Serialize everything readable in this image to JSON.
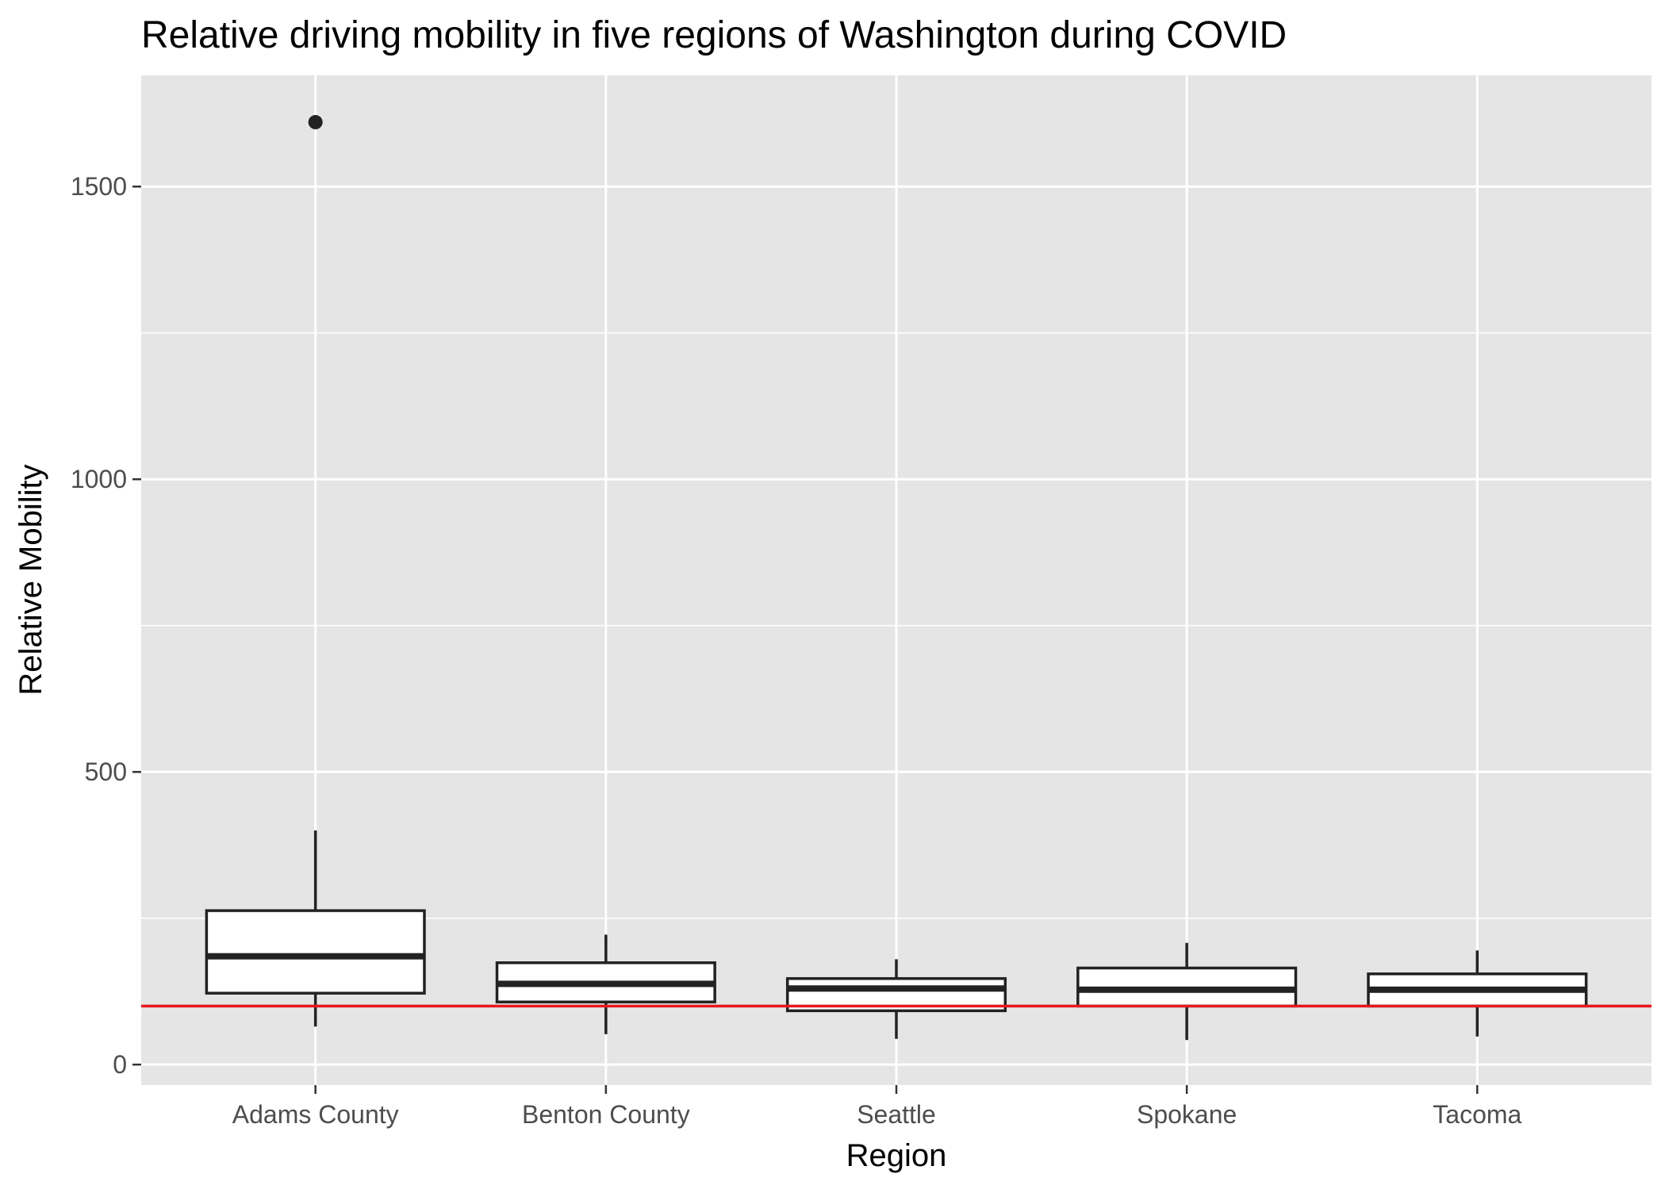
{
  "chart_data": {
    "type": "boxplot",
    "title": "Relative driving mobility in five regions of Washington during COVID",
    "xlabel": "Region",
    "ylabel": "Relative Mobility",
    "categories": [
      "Adams County",
      "Benton County",
      "Seattle",
      "Spokane",
      "Tacoma"
    ],
    "yticks": [
      0,
      500,
      1000,
      1500
    ],
    "ylim": [
      -35,
      1690
    ],
    "grid": true,
    "legend": "none",
    "boxes": [
      {
        "category": "Adams County",
        "whisker_low": 65,
        "q1": 122,
        "median": 185,
        "q3": 263,
        "whisker_high": 400,
        "outliers": [
          1610
        ]
      },
      {
        "category": "Benton County",
        "whisker_low": 52,
        "q1": 107,
        "median": 138,
        "q3": 174,
        "whisker_high": 222,
        "outliers": []
      },
      {
        "category": "Seattle",
        "whisker_low": 44,
        "q1": 92,
        "median": 130,
        "q3": 147,
        "whisker_high": 180,
        "outliers": []
      },
      {
        "category": "Spokane",
        "whisker_low": 42,
        "q1": 100,
        "median": 128,
        "q3": 165,
        "whisker_high": 208,
        "outliers": []
      },
      {
        "category": "Tacoma",
        "whisker_low": 48,
        "q1": 100,
        "median": 128,
        "q3": 155,
        "whisker_high": 195,
        "outliers": []
      }
    ],
    "reference_line": {
      "y": 100,
      "color": "#e41a1c"
    },
    "colors": {
      "panel_background": "#e5e5e5",
      "box_fill": "#ffffff",
      "box_stroke": "#222222"
    }
  }
}
